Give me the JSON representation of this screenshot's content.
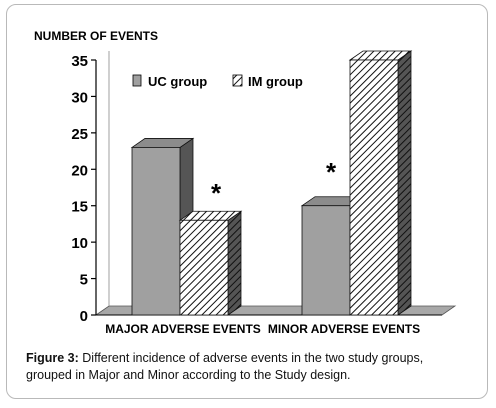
{
  "chart_data": {
    "type": "bar",
    "ylabel": "NUMBER OF EVENTS",
    "categories": [
      "MAJOR ADVERSE EVENTS",
      "MINOR ADVERSE EVENTS"
    ],
    "series": [
      {
        "name": "UC group",
        "values": [
          23,
          15
        ],
        "color": "#a0a0a0"
      },
      {
        "name": "IM group",
        "values": [
          13,
          35
        ],
        "color": "#ffffff",
        "pattern": "diagonal-hatch"
      }
    ],
    "ylim": [
      0,
      35
    ],
    "yticks": [
      "0",
      "5",
      "10",
      "15",
      "20",
      "25",
      "30",
      "35"
    ],
    "yticks_values": [
      0,
      5,
      10,
      15,
      20,
      25,
      30,
      35
    ],
    "annotations": [
      {
        "text": "*",
        "category": "MAJOR ADVERSE EVENTS"
      },
      {
        "text": "*",
        "category": "MINOR ADVERSE EVENTS"
      }
    ],
    "legend": "top-inside",
    "grid": false,
    "style": "3d"
  },
  "caption": {
    "label": "Figure 3:",
    "text": "Different incidence of adverse events in the two study groups, grouped in Major and Minor according to the Study design."
  }
}
